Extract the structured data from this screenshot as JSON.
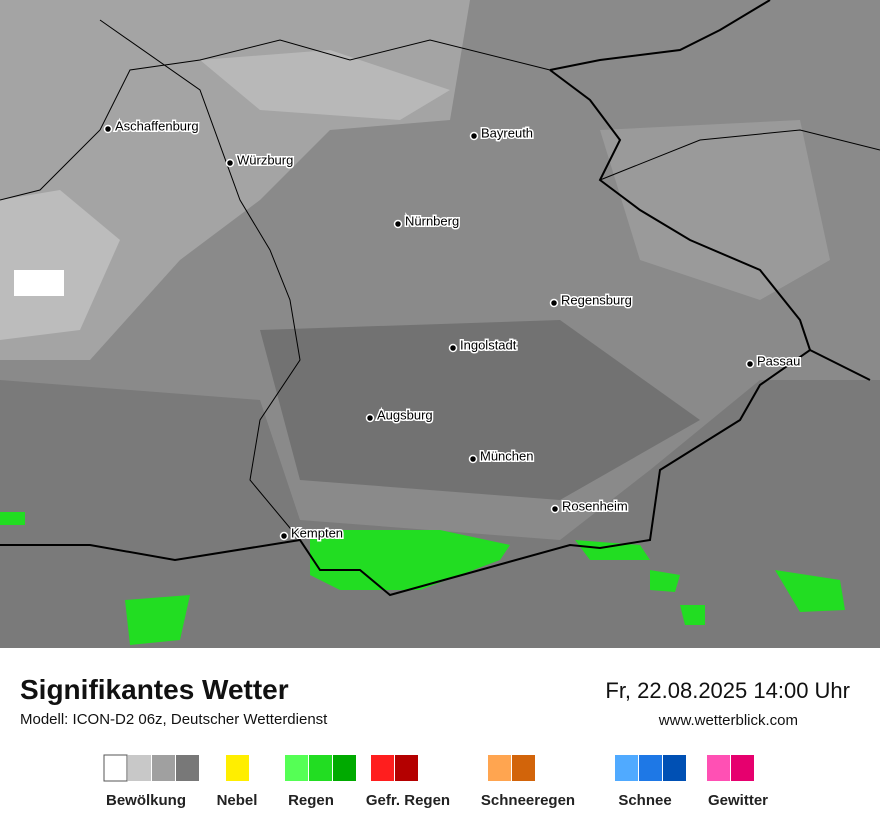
{
  "map": {
    "cities": [
      "Aschaffenburg",
      "Würzburg",
      "Bayreuth",
      "Nürnberg",
      "Regensburg",
      "Ingolstadt",
      "Passau",
      "Augsburg",
      "München",
      "Rosenheim",
      "Kempten"
    ]
  },
  "footer": {
    "title": "Signifikantes Wetter",
    "model": "Modell: ICON-D2 06z, Deutscher Wetterdienst",
    "datetime": "Fr, 22.08.2025 14:00 Uhr",
    "website": "www.wetterblick.com"
  },
  "legend": [
    {
      "label": "Bewölkung",
      "colors": [
        "#ffffff",
        "#c8c8c8",
        "#a0a0a0",
        "#787878"
      ]
    },
    {
      "label": "Nebel",
      "colors": [
        "#ffee00"
      ]
    },
    {
      "label": "Regen",
      "colors": [
        "#55ff55",
        "#22dd22",
        "#00aa00"
      ]
    },
    {
      "label": "Gefr. Regen",
      "colors": [
        "#ff1e1e",
        "#b40000"
      ]
    },
    {
      "label": "Schneeregen",
      "colors": [
        "#ffa550",
        "#d2640a"
      ]
    },
    {
      "label": "Schnee",
      "colors": [
        "#50aaff",
        "#1e78e6",
        "#0050b4"
      ]
    },
    {
      "label": "Gewitter",
      "colors": [
        "#ff50b4",
        "#e6006e"
      ]
    }
  ]
}
